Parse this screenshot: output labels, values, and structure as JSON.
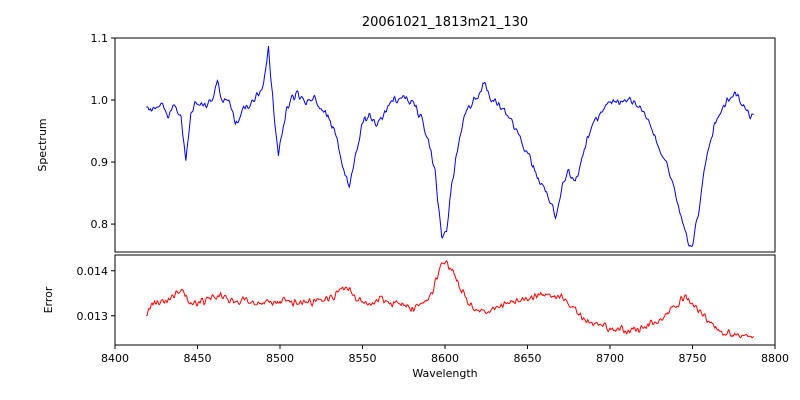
{
  "title": "20061021_1813m21_130",
  "chart_data": {
    "type": "line",
    "title": "20061021_1813m21_130",
    "xlabel": "Wavelength",
    "xlim": [
      8400,
      8800
    ],
    "xticks": [
      8400,
      8450,
      8500,
      8550,
      8600,
      8650,
      8700,
      8750,
      8800
    ],
    "xtick_labels": [
      "8400",
      "8450",
      "8500",
      "8550",
      "8600",
      "8650",
      "8700",
      "8750",
      "8800"
    ],
    "grid": false,
    "legend": "none",
    "panels": [
      {
        "name": "spectrum",
        "ylabel": "Spectrum",
        "ylim": [
          0.755,
          1.1
        ],
        "yticks": [
          0.8,
          0.9,
          1.0,
          1.1
        ],
        "ytick_labels": [
          "0.8",
          "0.9",
          "1.0",
          "1.1"
        ],
        "color": "#0000ff",
        "noise_amplitude": 0.009,
        "x_range": [
          8419,
          8787
        ],
        "keypoints": [
          [
            8419,
            0.99
          ],
          [
            8424,
            0.985
          ],
          [
            8428,
            1.0
          ],
          [
            8432,
            0.975
          ],
          [
            8436,
            0.99
          ],
          [
            8440,
            0.975
          ],
          [
            8443,
            0.9
          ],
          [
            8446,
            0.98
          ],
          [
            8450,
            1.0
          ],
          [
            8455,
            0.99
          ],
          [
            8459,
            1.005
          ],
          [
            8462,
            1.03
          ],
          [
            8465,
            0.995
          ],
          [
            8469,
            1.0
          ],
          [
            8473,
            0.96
          ],
          [
            8477,
            0.985
          ],
          [
            8481,
            0.995
          ],
          [
            8486,
            1.005
          ],
          [
            8490,
            1.02
          ],
          [
            8493,
            1.085
          ],
          [
            8496,
            0.99
          ],
          [
            8499,
            0.91
          ],
          [
            8502,
            0.96
          ],
          [
            8506,
            1.0
          ],
          [
            8511,
            1.01
          ],
          [
            8515,
            0.995
          ],
          [
            8519,
            1.005
          ],
          [
            8524,
            0.99
          ],
          [
            8529,
            0.975
          ],
          [
            8534,
            0.945
          ],
          [
            8539,
            0.88
          ],
          [
            8542,
            0.862
          ],
          [
            8546,
            0.915
          ],
          [
            8550,
            0.965
          ],
          [
            8554,
            0.975
          ],
          [
            8558,
            0.96
          ],
          [
            8563,
            0.98
          ],
          [
            8568,
            1.0
          ],
          [
            8572,
            1.005
          ],
          [
            8577,
            1.0
          ],
          [
            8581,
            0.995
          ],
          [
            8585,
            0.975
          ],
          [
            8590,
            0.94
          ],
          [
            8594,
            0.88
          ],
          [
            8598,
            0.78
          ],
          [
            8601,
            0.785
          ],
          [
            8604,
            0.86
          ],
          [
            8608,
            0.93
          ],
          [
            8612,
            0.975
          ],
          [
            8616,
            0.995
          ],
          [
            8620,
            1.005
          ],
          [
            8624,
            1.03
          ],
          [
            8628,
            1.0
          ],
          [
            8633,
            0.99
          ],
          [
            8638,
            0.975
          ],
          [
            8643,
            0.955
          ],
          [
            8648,
            0.925
          ],
          [
            8653,
            0.895
          ],
          [
            8658,
            0.865
          ],
          [
            8663,
            0.84
          ],
          [
            8667,
            0.815
          ],
          [
            8671,
            0.86
          ],
          [
            8675,
            0.885
          ],
          [
            8679,
            0.865
          ],
          [
            8683,
            0.91
          ],
          [
            8688,
            0.95
          ],
          [
            8693,
            0.975
          ],
          [
            8698,
            0.995
          ],
          [
            8703,
            1.0
          ],
          [
            8708,
            0.995
          ],
          [
            8713,
            1.0
          ],
          [
            8718,
            0.99
          ],
          [
            8723,
            0.965
          ],
          [
            8728,
            0.935
          ],
          [
            8733,
            0.905
          ],
          [
            8738,
            0.87
          ],
          [
            8743,
            0.815
          ],
          [
            8748,
            0.762
          ],
          [
            8751,
            0.775
          ],
          [
            8755,
            0.845
          ],
          [
            8759,
            0.915
          ],
          [
            8763,
            0.955
          ],
          [
            8768,
            0.985
          ],
          [
            8772,
            1.0
          ],
          [
            8776,
            1.015
          ],
          [
            8780,
            0.995
          ],
          [
            8784,
            0.98
          ],
          [
            8787,
            0.975
          ]
        ]
      },
      {
        "name": "error",
        "ylabel": "Error",
        "ylim": [
          0.01235,
          0.01435
        ],
        "yticks": [
          0.013,
          0.014
        ],
        "ytick_labels": [
          "0.013",
          "0.014"
        ],
        "color": "#ff0000",
        "noise_amplitude": 0.00012,
        "x_range": [
          8419,
          8787
        ],
        "keypoints": [
          [
            8419,
            0.013
          ],
          [
            8424,
            0.0133
          ],
          [
            8430,
            0.0133
          ],
          [
            8436,
            0.01345
          ],
          [
            8440,
            0.01355
          ],
          [
            8444,
            0.01335
          ],
          [
            8448,
            0.01325
          ],
          [
            8452,
            0.0133
          ],
          [
            8456,
            0.01335
          ],
          [
            8460,
            0.0134
          ],
          [
            8464,
            0.01345
          ],
          [
            8468,
            0.01335
          ],
          [
            8473,
            0.0133
          ],
          [
            8478,
            0.01335
          ],
          [
            8483,
            0.0133
          ],
          [
            8488,
            0.01325
          ],
          [
            8493,
            0.0133
          ],
          [
            8498,
            0.0133
          ],
          [
            8503,
            0.01335
          ],
          [
            8508,
            0.0133
          ],
          [
            8513,
            0.0133
          ],
          [
            8518,
            0.0133
          ],
          [
            8523,
            0.0133
          ],
          [
            8528,
            0.01335
          ],
          [
            8533,
            0.01345
          ],
          [
            8538,
            0.01365
          ],
          [
            8542,
            0.01355
          ],
          [
            8546,
            0.0134
          ],
          [
            8551,
            0.0133
          ],
          [
            8556,
            0.01325
          ],
          [
            8561,
            0.01335
          ],
          [
            8566,
            0.01325
          ],
          [
            8571,
            0.0133
          ],
          [
            8576,
            0.0132
          ],
          [
            8581,
            0.01315
          ],
          [
            8586,
            0.01325
          ],
          [
            8590,
            0.0134
          ],
          [
            8594,
            0.0137
          ],
          [
            8598,
            0.01415
          ],
          [
            8601,
            0.0142
          ],
          [
            8604,
            0.014
          ],
          [
            8608,
            0.0137
          ],
          [
            8612,
            0.0134
          ],
          [
            8616,
            0.0132
          ],
          [
            8620,
            0.0131
          ],
          [
            8625,
            0.01315
          ],
          [
            8630,
            0.0132
          ],
          [
            8635,
            0.01325
          ],
          [
            8640,
            0.0133
          ],
          [
            8645,
            0.01335
          ],
          [
            8650,
            0.0134
          ],
          [
            8655,
            0.01345
          ],
          [
            8660,
            0.0135
          ],
          [
            8665,
            0.01345
          ],
          [
            8670,
            0.0134
          ],
          [
            8674,
            0.0133
          ],
          [
            8678,
            0.01315
          ],
          [
            8683,
            0.01295
          ],
          [
            8688,
            0.01285
          ],
          [
            8693,
            0.0128
          ],
          [
            8698,
            0.01272
          ],
          [
            8703,
            0.0127
          ],
          [
            8708,
            0.01268
          ],
          [
            8713,
            0.01268
          ],
          [
            8718,
            0.0127
          ],
          [
            8723,
            0.01278
          ],
          [
            8728,
            0.01288
          ],
          [
            8733,
            0.013
          ],
          [
            8738,
            0.01315
          ],
          [
            8743,
            0.01335
          ],
          [
            8746,
            0.0134
          ],
          [
            8750,
            0.0133
          ],
          [
            8754,
            0.01315
          ],
          [
            8758,
            0.01295
          ],
          [
            8762,
            0.0128
          ],
          [
            8766,
            0.01268
          ],
          [
            8770,
            0.01262
          ],
          [
            8775,
            0.01258
          ],
          [
            8780,
            0.01252
          ],
          [
            8787,
            0.0125
          ]
        ]
      }
    ]
  }
}
